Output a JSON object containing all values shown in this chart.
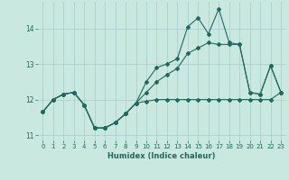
{
  "xlabel": "Humidex (Indice chaleur)",
  "background_color": "#c8e8e0",
  "grid_color": "#a8ccca",
  "line_color": "#1e6b5e",
  "xlim": [
    -0.5,
    23.5
  ],
  "ylim": [
    10.85,
    14.75
  ],
  "yticks": [
    11,
    12,
    13,
    14
  ],
  "xticks": [
    0,
    1,
    2,
    3,
    4,
    5,
    6,
    7,
    8,
    9,
    10,
    11,
    12,
    13,
    14,
    15,
    16,
    17,
    18,
    19,
    20,
    21,
    22,
    23
  ],
  "series1_x": [
    0,
    1,
    2,
    3,
    4,
    5,
    6,
    7,
    8,
    9,
    10,
    11,
    12,
    13,
    14,
    15,
    16,
    17,
    18,
    19,
    20,
    21,
    22,
    23
  ],
  "series1_y": [
    11.65,
    12.0,
    12.15,
    12.2,
    11.85,
    11.2,
    11.2,
    11.35,
    11.6,
    11.9,
    11.95,
    12.0,
    12.0,
    12.0,
    12.0,
    12.0,
    12.0,
    12.0,
    12.0,
    12.0,
    12.0,
    12.0,
    12.0,
    12.2
  ],
  "series2_x": [
    0,
    1,
    2,
    3,
    4,
    5,
    6,
    7,
    8,
    9,
    10,
    11,
    12,
    13,
    14,
    15,
    16,
    17,
    18,
    19,
    20,
    21,
    22,
    23
  ],
  "series2_y": [
    11.65,
    12.0,
    12.15,
    12.2,
    11.85,
    11.2,
    11.2,
    11.35,
    11.6,
    11.9,
    12.5,
    12.9,
    13.0,
    13.15,
    14.05,
    14.3,
    13.85,
    14.55,
    13.6,
    13.55,
    12.2,
    12.15,
    12.95,
    12.2
  ],
  "series3_x": [
    0,
    1,
    2,
    3,
    4,
    5,
    6,
    7,
    8,
    9,
    10,
    11,
    12,
    13,
    14,
    15,
    16,
    17,
    18,
    19,
    20,
    21,
    22,
    23
  ],
  "series3_y": [
    11.65,
    12.0,
    12.15,
    12.2,
    11.85,
    11.2,
    11.2,
    11.35,
    11.6,
    11.9,
    12.2,
    12.5,
    12.7,
    12.88,
    13.3,
    13.45,
    13.6,
    13.55,
    13.55,
    13.55,
    12.2,
    12.15,
    12.95,
    12.2
  ]
}
